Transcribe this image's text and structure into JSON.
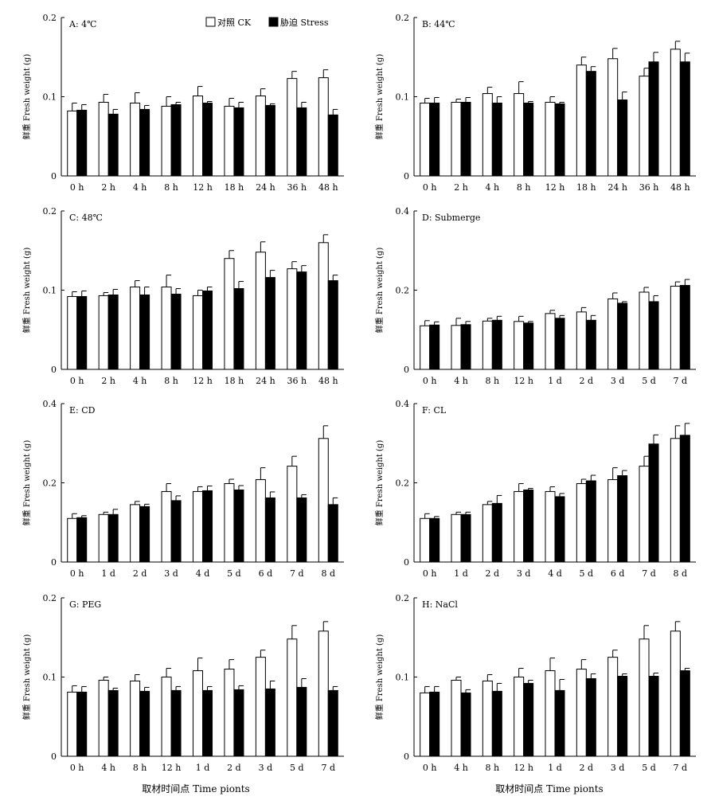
{
  "figure": {
    "legend": {
      "ck_label": "对照 CK",
      "stress_label": "胁迫 Stress"
    },
    "y_axis_label": "鲜重 Fresh weight (g)",
    "x_axis_label": "取材时间点 Time pionts"
  },
  "chart_data": [
    {
      "type": "bar",
      "panel": "A: 4℃",
      "categories": [
        "0 h",
        "2 h",
        "4 h",
        "8 h",
        "12 h",
        "18 h",
        "24 h",
        "36 h",
        "48 h"
      ],
      "ylim": [
        0,
        0.2
      ],
      "yticks": [
        "0",
        "0.1",
        "0.2"
      ],
      "series": [
        {
          "name": "对照 CK",
          "values": [
            0.082,
            0.093,
            0.092,
            0.088,
            0.101,
            0.088,
            0.101,
            0.123,
            0.124
          ],
          "errors": [
            0.01,
            0.01,
            0.013,
            0.012,
            0.012,
            0.01,
            0.009,
            0.009,
            0.01
          ]
        },
        {
          "name": "胁迫 Stress",
          "values": [
            0.083,
            0.078,
            0.084,
            0.09,
            0.092,
            0.086,
            0.089,
            0.086,
            0.077
          ],
          "errors": [
            0.007,
            0.006,
            0.005,
            0.003,
            0.002,
            0.007,
            0.002,
            0.007,
            0.007
          ]
        }
      ]
    },
    {
      "type": "bar",
      "panel": "B: 44℃",
      "categories": [
        "0 h",
        "2 h",
        "4 h",
        "8 h",
        "12 h",
        "18 h",
        "24 h",
        "36 h",
        "48 h"
      ],
      "ylim": [
        0,
        0.2
      ],
      "yticks": [
        "0",
        "0.1",
        "0.2"
      ],
      "series": [
        {
          "name": "对照 CK",
          "values": [
            0.092,
            0.093,
            0.104,
            0.104,
            0.093,
            0.14,
            0.148,
            0.126,
            0.16
          ],
          "errors": [
            0.006,
            0.004,
            0.008,
            0.015,
            0.007,
            0.01,
            0.013,
            0.01,
            0.01
          ]
        },
        {
          "name": "胁迫 Stress",
          "values": [
            0.092,
            0.093,
            0.092,
            0.092,
            0.091,
            0.132,
            0.096,
            0.144,
            0.144
          ],
          "errors": [
            0.007,
            0.006,
            0.008,
            0.002,
            0.002,
            0.006,
            0.01,
            0.012,
            0.011
          ]
        }
      ]
    },
    {
      "type": "bar",
      "panel": "C: 48℃",
      "categories": [
        "0 h",
        "2 h",
        "4 h",
        "8 h",
        "12 h",
        "18 h",
        "24 h",
        "36 h",
        "48 h"
      ],
      "ylim": [
        0,
        0.2
      ],
      "yticks": [
        "0",
        "0.1",
        "0.2"
      ],
      "series": [
        {
          "name": "对照 CK",
          "values": [
            0.092,
            0.093,
            0.104,
            0.104,
            0.093,
            0.14,
            0.148,
            0.127,
            0.16
          ],
          "errors": [
            0.006,
            0.004,
            0.008,
            0.015,
            0.007,
            0.01,
            0.013,
            0.009,
            0.01
          ]
        },
        {
          "name": "胁迫 Stress",
          "values": [
            0.092,
            0.094,
            0.094,
            0.095,
            0.099,
            0.102,
            0.116,
            0.123,
            0.112
          ],
          "errors": [
            0.007,
            0.007,
            0.01,
            0.007,
            0.005,
            0.009,
            0.009,
            0.008,
            0.007
          ]
        }
      ]
    },
    {
      "type": "bar",
      "panel": "D: Submerge",
      "categories": [
        "0 h",
        "4 h",
        "8 h",
        "12 h",
        "1 d",
        "2 d",
        "3 d",
        "5 d",
        "7 d"
      ],
      "ylim": [
        0,
        0.4
      ],
      "yticks": [
        "0",
        "0.2",
        "0.4"
      ],
      "series": [
        {
          "name": "对照 CK",
          "values": [
            0.11,
            0.111,
            0.122,
            0.121,
            0.141,
            0.145,
            0.178,
            0.195,
            0.21
          ],
          "errors": [
            0.013,
            0.018,
            0.007,
            0.013,
            0.008,
            0.011,
            0.015,
            0.012,
            0.011
          ]
        },
        {
          "name": "胁迫 Stress",
          "values": [
            0.112,
            0.113,
            0.124,
            0.117,
            0.129,
            0.124,
            0.167,
            0.171,
            0.212
          ],
          "errors": [
            0.008,
            0.008,
            0.01,
            0.004,
            0.007,
            0.012,
            0.004,
            0.015,
            0.015
          ]
        }
      ]
    },
    {
      "type": "bar",
      "panel": "E: CD",
      "categories": [
        "0 h",
        "1 d",
        "2 d",
        "3 d",
        "4 d",
        "5 d",
        "6 d",
        "7 d",
        "8 d"
      ],
      "ylim": [
        0,
        0.4
      ],
      "yticks": [
        "0",
        "0.2",
        "0.4"
      ],
      "series": [
        {
          "name": "对照 CK",
          "values": [
            0.11,
            0.12,
            0.145,
            0.178,
            0.178,
            0.198,
            0.208,
            0.242,
            0.312
          ],
          "errors": [
            0.012,
            0.006,
            0.008,
            0.02,
            0.012,
            0.011,
            0.03,
            0.025,
            0.032
          ]
        },
        {
          "name": "胁迫 Stress",
          "values": [
            0.112,
            0.12,
            0.14,
            0.155,
            0.18,
            0.182,
            0.162,
            0.162,
            0.145
          ],
          "errors": [
            0.005,
            0.013,
            0.006,
            0.012,
            0.012,
            0.011,
            0.015,
            0.008,
            0.017
          ]
        }
      ]
    },
    {
      "type": "bar",
      "panel": "F: CL",
      "categories": [
        "0 h",
        "1 d",
        "2 d",
        "3 d",
        "4 d",
        "5 d",
        "6 d",
        "7 d",
        "8 d"
      ],
      "ylim": [
        0,
        0.4
      ],
      "yticks": [
        "0",
        "0.2",
        "0.4"
      ],
      "series": [
        {
          "name": "对照 CK",
          "values": [
            0.11,
            0.12,
            0.145,
            0.178,
            0.178,
            0.198,
            0.208,
            0.242,
            0.312
          ],
          "errors": [
            0.012,
            0.006,
            0.008,
            0.02,
            0.012,
            0.011,
            0.03,
            0.025,
            0.032
          ]
        },
        {
          "name": "胁迫 Stress",
          "values": [
            0.11,
            0.12,
            0.148,
            0.182,
            0.165,
            0.205,
            0.218,
            0.298,
            0.32
          ],
          "errors": [
            0.005,
            0.006,
            0.02,
            0.004,
            0.008,
            0.014,
            0.013,
            0.023,
            0.03
          ]
        }
      ]
    },
    {
      "type": "bar",
      "panel": "G: PEG",
      "categories": [
        "0 h",
        "4 h",
        "8 h",
        "12 h",
        "1 d",
        "2 d",
        "3 d",
        "5 d",
        "7 d"
      ],
      "ylim": [
        0,
        0.2
      ],
      "yticks": [
        "0",
        "0.1",
        "0.2"
      ],
      "series": [
        {
          "name": "对照 CK",
          "values": [
            0.081,
            0.096,
            0.095,
            0.1,
            0.108,
            0.11,
            0.125,
            0.148,
            0.158
          ],
          "errors": [
            0.008,
            0.004,
            0.008,
            0.011,
            0.016,
            0.012,
            0.009,
            0.017,
            0.012
          ]
        },
        {
          "name": "胁迫 Stress",
          "values": [
            0.081,
            0.083,
            0.082,
            0.083,
            0.083,
            0.084,
            0.085,
            0.087,
            0.083
          ],
          "errors": [
            0.007,
            0.003,
            0.005,
            0.005,
            0.005,
            0.005,
            0.01,
            0.011,
            0.005
          ]
        }
      ]
    },
    {
      "type": "bar",
      "panel": "H: NaCl",
      "categories": [
        "0 h",
        "4 h",
        "8 h",
        "12 h",
        "1 d",
        "2 d",
        "3 d",
        "5 d",
        "7 d"
      ],
      "ylim": [
        0,
        0.2
      ],
      "yticks": [
        "0",
        "0.1",
        "0.2"
      ],
      "series": [
        {
          "name": "对照 CK",
          "values": [
            0.08,
            0.096,
            0.095,
            0.1,
            0.108,
            0.11,
            0.125,
            0.148,
            0.158
          ],
          "errors": [
            0.008,
            0.004,
            0.008,
            0.011,
            0.016,
            0.012,
            0.009,
            0.017,
            0.012
          ]
        },
        {
          "name": "胁迫 Stress",
          "values": [
            0.081,
            0.08,
            0.082,
            0.092,
            0.083,
            0.098,
            0.101,
            0.101,
            0.108
          ],
          "errors": [
            0.007,
            0.004,
            0.01,
            0.004,
            0.014,
            0.006,
            0.003,
            0.004,
            0.003
          ]
        }
      ]
    }
  ]
}
